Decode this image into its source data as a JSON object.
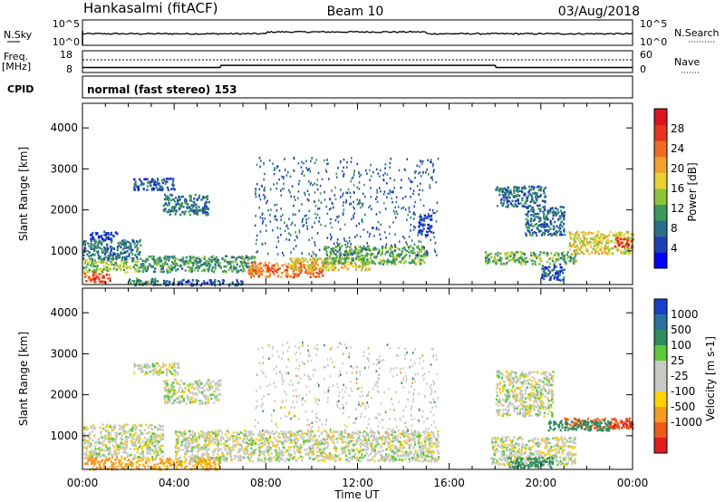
{
  "header": {
    "station": "Hankasalmi (fitACF)",
    "beam": "Beam 10",
    "date": "03/Aug/2018"
  },
  "params": {
    "nsky_label": "N.Sky",
    "nsky_ticks": [
      "10^5",
      "10^0"
    ],
    "nsearch_label": "N.Search",
    "nsearch_ticks": [
      "10^5",
      "10^0"
    ],
    "freq_label": "Freq.",
    "freq_unit": "[MHz]",
    "freq_ticks": [
      "18",
      "8"
    ],
    "nave_label": "Nave",
    "nave_ticks": [
      "60",
      "0"
    ],
    "cpid_label": "CPID",
    "cpid_text": "normal (fast stereo) 153",
    "freq_series": [
      {
        "t": 0.0,
        "f": 10.3
      },
      {
        "t": 6.0,
        "f": 10.3
      },
      {
        "t": 6.05,
        "f": 11.3
      },
      {
        "t": 18.0,
        "f": 11.3
      },
      {
        "t": 18.05,
        "f": 10.3
      },
      {
        "t": 24.0,
        "f": 10.3
      }
    ],
    "nave_level": 23
  },
  "chart_data": [
    {
      "type": "heatmap",
      "name": "power",
      "xlabel": "Time UT",
      "ylabel": "Slant Range [km]",
      "xlim": [
        0,
        24
      ],
      "ylim": [
        180,
        4600
      ],
      "x_ticks": [
        "00:00",
        "04:00",
        "08:00",
        "12:00",
        "16:00",
        "20:00",
        "00:00"
      ],
      "x_tick_values": [
        0,
        4,
        8,
        12,
        16,
        20,
        24
      ],
      "y_ticks": [
        1000,
        2000,
        3000,
        4000
      ],
      "colorbar": {
        "label": "Power [dB]",
        "ticks": [
          "4",
          "8",
          "12",
          "16",
          "20",
          "24",
          "28"
        ],
        "colors": [
          "#0000ff",
          "#1e3fb4",
          "#2a6e8c",
          "#3b9a58",
          "#8cc43c",
          "#e8d232",
          "#f2a12e",
          "#ef6a22",
          "#e53520",
          "#d8141e"
        ],
        "range": [
          0,
          30
        ]
      },
      "regions": [
        {
          "t0": 0.0,
          "t1": 1.2,
          "r0": 250,
          "r1": 500,
          "level": 24
        },
        {
          "t0": 0.0,
          "t1": 2.5,
          "r0": 500,
          "r1": 800,
          "level": 14
        },
        {
          "t0": 0.0,
          "t1": 2.5,
          "r0": 800,
          "r1": 1300,
          "level": 8
        },
        {
          "t0": 0.3,
          "t1": 1.5,
          "r0": 1300,
          "r1": 1500,
          "level": 5
        },
        {
          "t0": 2.2,
          "t1": 4.0,
          "r0": 2500,
          "r1": 2800,
          "level": 6
        },
        {
          "t0": 3.5,
          "t1": 5.5,
          "r0": 1900,
          "r1": 2400,
          "level": 8
        },
        {
          "t0": 2.5,
          "t1": 7.5,
          "r0": 500,
          "r1": 900,
          "level": 10
        },
        {
          "t0": 7.2,
          "t1": 10.5,
          "r0": 380,
          "r1": 750,
          "level": 22
        },
        {
          "t0": 9.0,
          "t1": 12.5,
          "r0": 550,
          "r1": 850,
          "level": 17
        },
        {
          "t0": 10.5,
          "t1": 15.0,
          "r0": 700,
          "r1": 1150,
          "level": 12
        },
        {
          "t0": 14.6,
          "t1": 15.2,
          "r0": 1400,
          "r1": 1900,
          "level": 5
        },
        {
          "t0": 18.0,
          "t1": 20.2,
          "r0": 2100,
          "r1": 2600,
          "level": 7
        },
        {
          "t0": 19.3,
          "t1": 21.0,
          "r0": 1400,
          "r1": 2100,
          "level": 7
        },
        {
          "t0": 17.5,
          "t1": 21.5,
          "r0": 700,
          "r1": 1000,
          "level": 12
        },
        {
          "t0": 20.0,
          "t1": 21.0,
          "r0": 300,
          "r1": 700,
          "level": 6
        },
        {
          "t0": 21.2,
          "t1": 24.0,
          "r0": 950,
          "r1": 1500,
          "level": 16
        },
        {
          "t0": 23.2,
          "t1": 24.0,
          "r0": 1100,
          "r1": 1350,
          "level": 26
        },
        {
          "t0": 2.0,
          "t1": 3.5,
          "r0": 180,
          "r1": 350,
          "level": 9
        },
        {
          "t0": 3.5,
          "t1": 7.0,
          "r0": 180,
          "r1": 320,
          "level": 5
        }
      ]
    },
    {
      "type": "heatmap",
      "name": "velocity",
      "xlabel": "Time UT",
      "ylabel": "Slant Range [km]",
      "xlim": [
        0,
        24
      ],
      "ylim": [
        180,
        4600
      ],
      "x_ticks": [
        "00:00",
        "04:00",
        "08:00",
        "12:00",
        "16:00",
        "20:00",
        "00:00"
      ],
      "x_tick_values": [
        0,
        4,
        8,
        12,
        16,
        20,
        24
      ],
      "y_ticks": [
        1000,
        2000,
        3000,
        4000
      ],
      "colorbar": {
        "label": "Velocity [m s-1]",
        "ticks": [
          "1000",
          "500",
          "100",
          "25",
          "-25",
          "-100",
          "-500",
          "-1000"
        ],
        "colors": [
          "#1a3fc8",
          "#2a70a0",
          "#2e8c5e",
          "#5cc83a",
          "#c8c8c4",
          "#c8c8c4",
          "#ffd200",
          "#f59c20",
          "#ef5a1c",
          "#e01e1e"
        ],
        "range": [
          -1200,
          1200
        ]
      },
      "regions": [
        {
          "t0": 0.0,
          "t1": 1.5,
          "r0": 200,
          "r1": 500,
          "vel": -150
        },
        {
          "t0": 1.5,
          "t1": 6.0,
          "r0": 200,
          "r1": 500,
          "vel": -80
        },
        {
          "t0": 0.0,
          "t1": 3.5,
          "r0": 500,
          "r1": 1300,
          "vel": 0
        },
        {
          "t0": 2.2,
          "t1": 4.2,
          "r0": 2500,
          "r1": 2800,
          "vel": 0
        },
        {
          "t0": 3.5,
          "t1": 6.0,
          "r0": 1800,
          "r1": 2400,
          "vel": 0
        },
        {
          "t0": 4.0,
          "t1": 15.5,
          "r0": 400,
          "r1": 1150,
          "vel": 0
        },
        {
          "t0": 17.8,
          "t1": 21.5,
          "r0": 300,
          "r1": 1000,
          "vel": 0
        },
        {
          "t0": 18.0,
          "t1": 20.5,
          "r0": 1500,
          "r1": 2600,
          "vel": 0
        },
        {
          "t0": 21.0,
          "t1": 24.0,
          "r0": 1200,
          "r1": 1450,
          "vel": -400
        },
        {
          "t0": 20.3,
          "t1": 23.0,
          "r0": 1150,
          "r1": 1400,
          "vel": 150
        },
        {
          "t0": 23.0,
          "t1": 24.0,
          "r0": 1200,
          "r1": 1400,
          "vel": -700
        },
        {
          "t0": 18.5,
          "t1": 20.5,
          "r0": 250,
          "r1": 500,
          "vel": 120
        }
      ]
    }
  ]
}
